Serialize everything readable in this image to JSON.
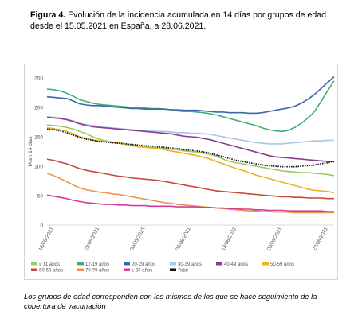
{
  "figure": {
    "label": "Figura 4.",
    "title_rest": " Evolución de la incidencia acumulada en 14 días por grupos de edad desde el 15.05.2021 en España, a 28.06.2021."
  },
  "footnote": "Los grupos de edad corresponden con los mismos de los que se hace seguimiento de la cobertura de vacunación",
  "chart_data": {
    "type": "line",
    "title": "",
    "xlabel": "",
    "ylabel": "IA en 14 días",
    "ylim": [
      0,
      250
    ],
    "yticks": [
      0,
      50,
      100,
      150,
      200,
      250
    ],
    "grid": false,
    "legend_position": "bottom",
    "x": [
      "15/05/2021",
      "16/05/2021",
      "17/05/2021",
      "18/05/2021",
      "19/05/2021",
      "20/05/2021",
      "21/05/2021",
      "22/05/2021",
      "23/05/2021",
      "24/05/2021",
      "25/05/2021",
      "26/05/2021",
      "27/05/2021",
      "28/05/2021",
      "29/05/2021",
      "30/05/2021",
      "31/05/2021",
      "01/06/2021",
      "02/06/2021",
      "03/06/2021",
      "04/06/2021",
      "05/06/2021",
      "06/06/2021",
      "07/06/2021",
      "08/06/2021",
      "09/06/2021",
      "10/06/2021",
      "11/06/2021",
      "12/06/2021",
      "13/06/2021",
      "14/06/2021",
      "15/06/2021",
      "16/06/2021",
      "17/06/2021",
      "18/06/2021",
      "19/06/2021",
      "20/06/2021",
      "21/06/2021",
      "22/06/2021",
      "23/06/2021",
      "24/06/2021",
      "25/06/2021",
      "26/06/2021",
      "27/06/2021",
      "28/06/2021"
    ],
    "xticks": [
      "16/05/2021",
      "23/05/2021",
      "30/05/2021",
      "06/06/2021",
      "13/06/2021",
      "20/06/2021",
      "27/06/2021"
    ],
    "series": [
      {
        "name": "≤ 11 años",
        "color": "#9bc862",
        "values": [
          170,
          169,
          168,
          166,
          163,
          159,
          155,
          150,
          146,
          143,
          141,
          140,
          138,
          136,
          134,
          133,
          132,
          131,
          130,
          129,
          128,
          126,
          125,
          124,
          122,
          120,
          117,
          112,
          108,
          106,
          104,
          102,
          100,
          98,
          96,
          94,
          92,
          91,
          90,
          89,
          89,
          88,
          87,
          86,
          84
        ]
      },
      {
        "name": "12-19 años",
        "color": "#3fae7e",
        "values": [
          231,
          230,
          228,
          224,
          219,
          213,
          210,
          207,
          205,
          204,
          203,
          202,
          201,
          200,
          199,
          199,
          198,
          198,
          197,
          196,
          194,
          193,
          193,
          192,
          191,
          189,
          187,
          184,
          181,
          178,
          175,
          172,
          169,
          165,
          162,
          160,
          159,
          161,
          166,
          173,
          182,
          193,
          210,
          228,
          245
        ]
      },
      {
        "name": "20-29 años",
        "color": "#3b68a7",
        "values": [
          218,
          217,
          216,
          215,
          211,
          206,
          204,
          203,
          203,
          202,
          201,
          200,
          199,
          198,
          198,
          197,
          197,
          197,
          197,
          196,
          196,
          195,
          195,
          195,
          194,
          193,
          192,
          192,
          191,
          191,
          191,
          190,
          190,
          191,
          193,
          195,
          197,
          199,
          202,
          207,
          214,
          222,
          232,
          242,
          252
        ]
      },
      {
        "name": "30-39 años",
        "color": "#a9c5e8",
        "values": [
          184,
          183,
          182,
          180,
          177,
          173,
          171,
          169,
          167,
          166,
          165,
          164,
          163,
          162,
          161,
          161,
          160,
          159,
          159,
          158,
          157,
          157,
          156,
          156,
          155,
          154,
          152,
          150,
          148,
          146,
          144,
          142,
          140,
          139,
          138,
          138,
          138,
          139,
          140,
          141,
          142,
          143,
          143,
          144,
          144
        ]
      },
      {
        "name": "40-49 años",
        "color": "#8a3d92",
        "values": [
          183,
          182,
          181,
          179,
          176,
          172,
          169,
          167,
          166,
          165,
          164,
          163,
          162,
          161,
          160,
          159,
          158,
          157,
          156,
          155,
          153,
          151,
          150,
          149,
          147,
          145,
          142,
          139,
          136,
          133,
          130,
          127,
          124,
          121,
          118,
          116,
          115,
          114,
          113,
          112,
          111,
          110,
          109,
          108,
          108
        ]
      },
      {
        "name": "50-59 años",
        "color": "#eab421",
        "values": [
          165,
          164,
          162,
          159,
          155,
          150,
          147,
          145,
          143,
          142,
          140,
          139,
          137,
          135,
          133,
          132,
          131,
          130,
          128,
          126,
          124,
          122,
          120,
          118,
          115,
          112,
          108,
          104,
          100,
          96,
          93,
          89,
          85,
          82,
          79,
          76,
          73,
          70,
          67,
          64,
          61,
          59,
          58,
          57,
          55
        ]
      },
      {
        "name": "60-69 años",
        "color": "#c8483a",
        "values": [
          112,
          110,
          107,
          104,
          100,
          96,
          93,
          91,
          89,
          87,
          85,
          83,
          82,
          80,
          79,
          78,
          77,
          76,
          74,
          72,
          70,
          68,
          66,
          64,
          62,
          60,
          58,
          57,
          56,
          55,
          54,
          53,
          52,
          51,
          50,
          49,
          48,
          48,
          47,
          47,
          46,
          46,
          46,
          45,
          45
        ]
      },
      {
        "name": "70-79 años",
        "color": "#e8954a",
        "values": [
          88,
          84,
          79,
          74,
          68,
          63,
          60,
          58,
          56,
          55,
          53,
          52,
          50,
          48,
          46,
          44,
          42,
          40,
          38,
          37,
          35,
          34,
          33,
          32,
          31,
          30,
          29,
          28,
          27,
          26,
          25,
          24,
          24,
          23,
          23,
          22,
          22,
          22,
          21,
          21,
          21,
          21,
          21,
          21,
          21
        ]
      },
      {
        "name": "≥ 80 años",
        "color": "#d63b9a",
        "values": [
          51,
          49,
          47,
          45,
          42,
          40,
          38,
          37,
          36,
          35,
          35,
          34,
          34,
          33,
          33,
          33,
          32,
          32,
          32,
          32,
          31,
          31,
          31,
          31,
          30,
          30,
          29,
          29,
          28,
          28,
          27,
          27,
          26,
          26,
          25,
          25,
          25,
          24,
          24,
          24,
          24,
          24,
          24,
          23,
          23
        ]
      },
      {
        "name": "Total",
        "color": "#111111",
        "dashed": true,
        "values": [
          163,
          162,
          160,
          157,
          153,
          149,
          146,
          144,
          142,
          141,
          140,
          139,
          138,
          137,
          136,
          135,
          134,
          133,
          132,
          131,
          130,
          128,
          127,
          126,
          124,
          122,
          119,
          116,
          113,
          110,
          108,
          106,
          104,
          102,
          101,
          100,
          99,
          99,
          99,
          100,
          101,
          102,
          104,
          106,
          108
        ]
      }
    ]
  }
}
